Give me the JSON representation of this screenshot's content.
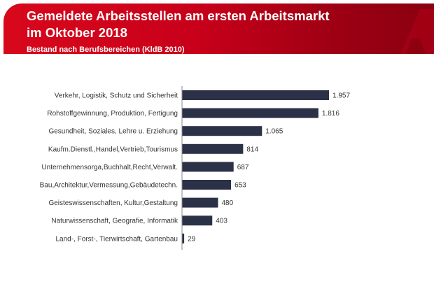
{
  "header": {
    "title_line1": "Gemeldete Arbeitsstellen am ersten Arbeitsmarkt",
    "title_line2": "im Oktober 2018",
    "subtitle": "Bestand nach Berufsbereichen (KldB 2010)"
  },
  "colors": {
    "bar": "#2b3147",
    "header_red": "#d8081c",
    "header_dark": "#8a0010"
  },
  "chart_data": {
    "type": "bar",
    "orientation": "horizontal",
    "title": "Gemeldete Arbeitsstellen am ersten Arbeitsmarkt im Oktober 2018",
    "subtitle": "Bestand nach Berufsbereichen (KldB 2010)",
    "categories": [
      "Verkehr, Logistik, Schutz und Sicherheit",
      "Rohstoffgewinnung, Produktion, Fertigung",
      "Gesundheit, Soziales, Lehre u. Erziehung",
      "Kaufm.Dienstl.,Handel,Vertrieb,Tourismus",
      "Unternehmensorga,Buchhalt,Recht,Verwalt.",
      "Bau,Architektur,Vermessung,Gebäudetechn.",
      "Geisteswissenschaften, Kultur,Gestaltung",
      "Naturwissenschaft, Geografie, Informatik",
      "Land-, Forst-, Tierwirtschaft, Gartenbau"
    ],
    "values": [
      1957,
      1816,
      1065,
      814,
      687,
      653,
      480,
      403,
      29
    ],
    "data_labels": [
      "1.957",
      "1.816",
      "1.065",
      "814",
      "687",
      "653",
      "480",
      "403",
      "29"
    ],
    "xlim": [
      0,
      1957
    ],
    "grid": false,
    "legend": "none"
  }
}
